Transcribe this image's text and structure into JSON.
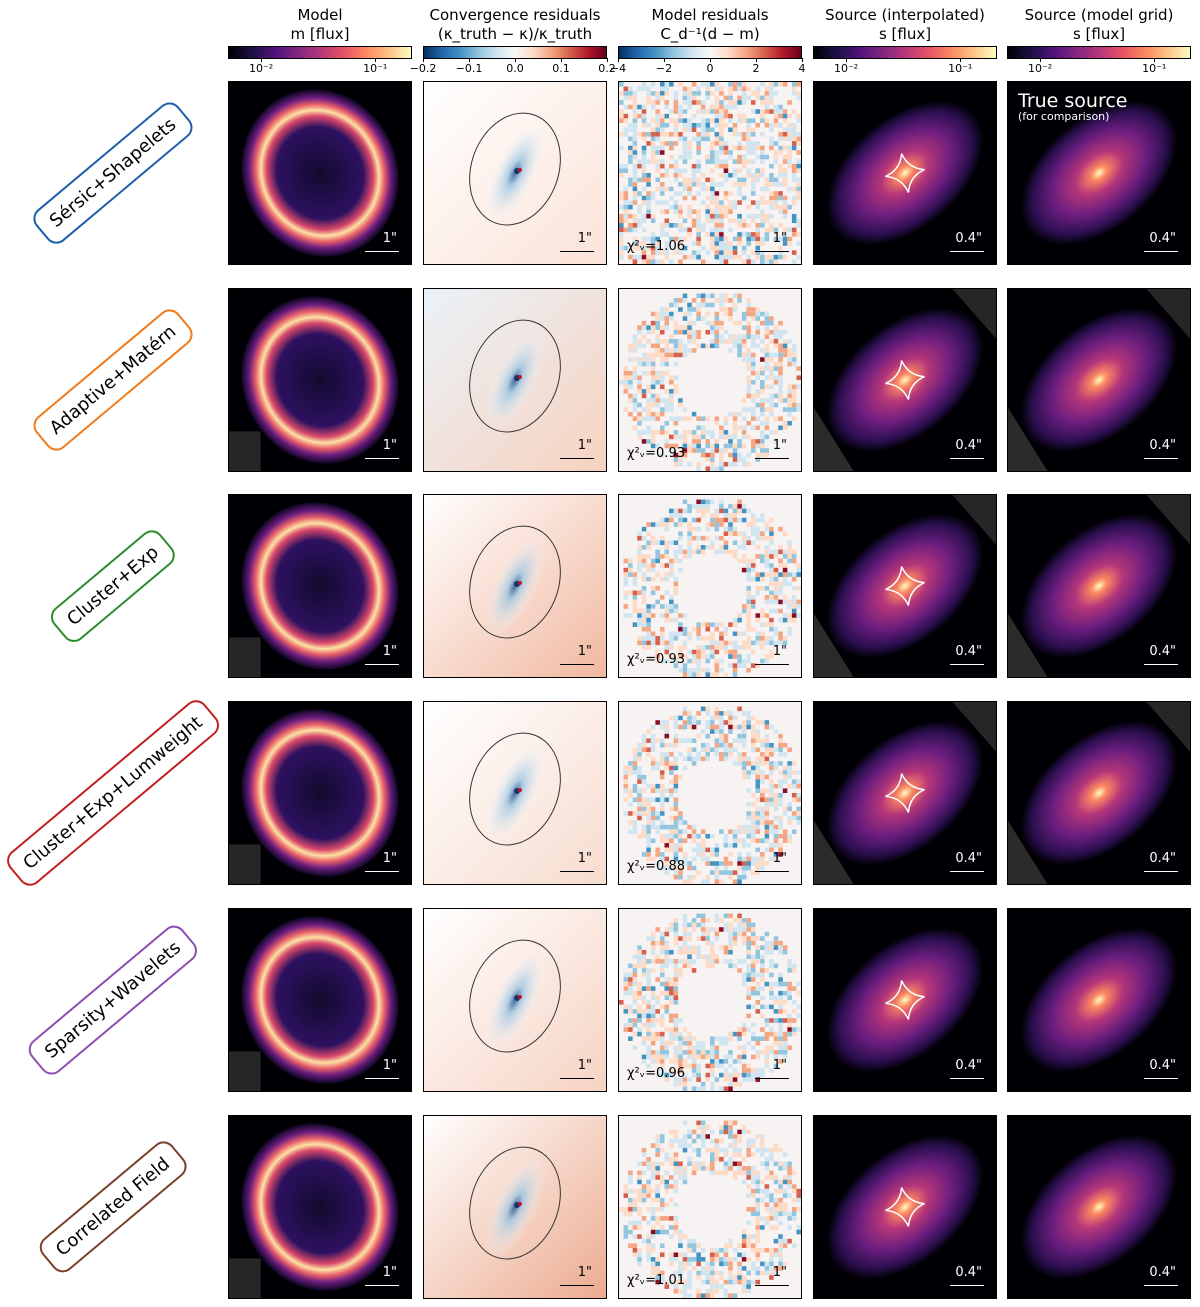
{
  "columns": [
    {
      "title_line1": "Model",
      "title_line2": "m [flux]",
      "colorbar": {
        "cmap": "magma",
        "ticks": [
          "10⁻²",
          "10⁻¹"
        ]
      }
    },
    {
      "title_line1": "Convergence residuals",
      "title_line2": "(κ_truth − κ)/κ_truth",
      "colorbar": {
        "cmap": "RdBu_r",
        "ticks": [
          "−0.2",
          "−0.1",
          "0.0",
          "0.1",
          "0.2"
        ]
      }
    },
    {
      "title_line1": "Model residuals",
      "title_line2": "C_d⁻¹(d − m)",
      "colorbar": {
        "cmap": "RdBu_r",
        "ticks": [
          "−4",
          "−2",
          "0",
          "2",
          "4"
        ]
      }
    },
    {
      "title_line1": "Source (interpolated)",
      "title_line2": "s [flux]",
      "colorbar": {
        "cmap": "magma",
        "ticks": [
          "10⁻²",
          "10⁻¹"
        ]
      }
    },
    {
      "title_line1": "Source (model grid)",
      "title_line2": "s [flux]",
      "colorbar": {
        "cmap": "magma",
        "ticks": [
          "10⁻²",
          "10⁻¹"
        ]
      }
    }
  ],
  "true_source": {
    "title": "True source",
    "subtitle": "(for comparison)"
  },
  "scale_labels": {
    "image": "1\"",
    "source": "0.4\""
  },
  "rows": [
    {
      "label": "Sérsic+Shapelets",
      "color": "#1f5fa8",
      "chi2": "χ²ᵥ=1.06"
    },
    {
      "label": "Adaptive+Matérn",
      "color": "#f07a1a",
      "chi2": "χ²ᵥ=0.93"
    },
    {
      "label": "Cluster+Exp",
      "color": "#2c8c2c",
      "chi2": "χ²ᵥ=0.93"
    },
    {
      "label": "Cluster+Exp+Lumweight",
      "color": "#c41e1e",
      "chi2": "χ²ᵥ=0.88"
    },
    {
      "label": "Sparsity+Wavelets",
      "color": "#8a4fb0",
      "chi2": "χ²ᵥ=0.96"
    },
    {
      "label": "Correlated Field",
      "color": "#7b3f2c",
      "chi2": "χ²ᵥ=1.01"
    }
  ],
  "colors": {
    "magma_dark": "#000004",
    "magma_mid": "#b73779",
    "magma_bright": "#fcfdbf",
    "rd": "#b2182b",
    "bu": "#2166ac"
  }
}
